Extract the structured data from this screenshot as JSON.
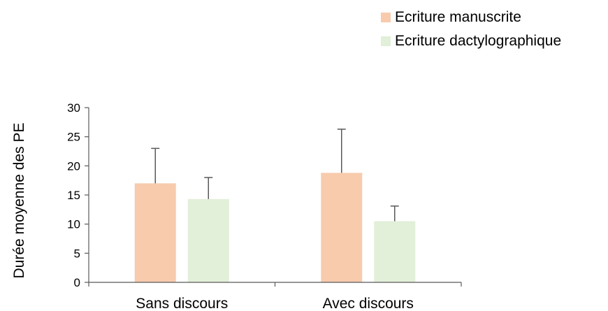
{
  "colors": {
    "manuscrite": "#f8cbad",
    "dactylographique": "#e2efd9",
    "axis": "#595959",
    "errorbar": "#595959"
  },
  "chart_data": {
    "type": "bar",
    "title": "",
    "xlabel": "",
    "ylabel": "Durée moyenne des PE",
    "categories": [
      "Sans discours",
      "Avec discours"
    ],
    "ylim": [
      0,
      30
    ],
    "yticks": [
      0,
      5,
      10,
      15,
      20,
      25,
      30
    ],
    "grid": false,
    "legend_position": "top-right",
    "series": [
      {
        "name": "Ecriture manuscrite",
        "values": [
          17.0,
          18.8
        ],
        "errors": [
          6.0,
          7.5
        ]
      },
      {
        "name": "Ecriture dactylographique",
        "values": [
          14.3,
          10.5
        ],
        "errors": [
          3.7,
          2.6
        ]
      }
    ]
  }
}
